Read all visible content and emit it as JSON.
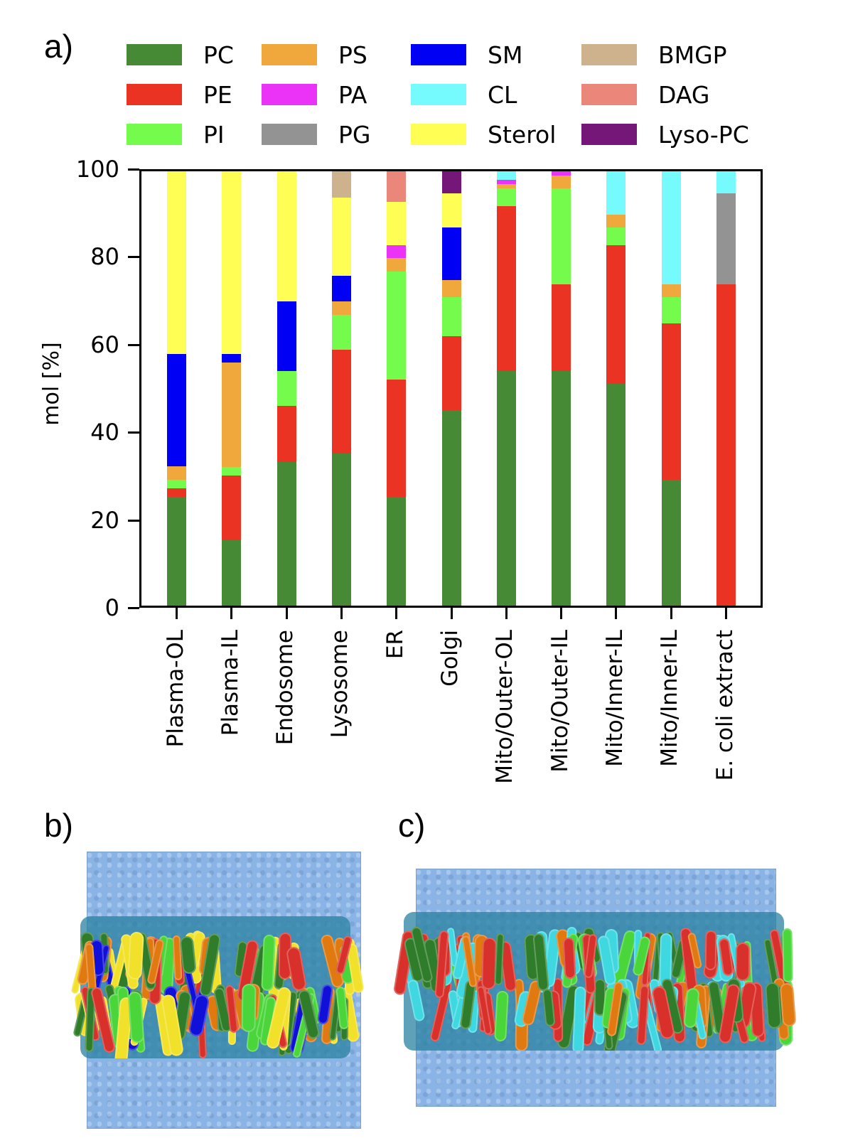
{
  "panels": {
    "a": "a)",
    "b": "b)",
    "c": "c)"
  },
  "legend": [
    {
      "name": "PC",
      "color": "#478a35"
    },
    {
      "name": "PE",
      "color": "#ea3323"
    },
    {
      "name": "PI",
      "color": "#75fb4c"
    },
    {
      "name": "PS",
      "color": "#f0a83c"
    },
    {
      "name": "PA",
      "color": "#ea33f7"
    },
    {
      "name": "PG",
      "color": "#939393"
    },
    {
      "name": "SM",
      "color": "#0000f5"
    },
    {
      "name": "CL",
      "color": "#75fbfd"
    },
    {
      "name": "Sterol",
      "color": "#fffe54"
    },
    {
      "name": "BMGP",
      "color": "#ceb18d"
    },
    {
      "name": "DAG",
      "color": "#ea877a"
    },
    {
      "name": "Lyso-PC",
      "color": "#741779"
    }
  ],
  "axes": {
    "ylabel": "mol [%]",
    "yticks": [
      "0",
      "20",
      "40",
      "60",
      "80",
      "100"
    ]
  },
  "chart_data": {
    "type": "bar",
    "stacked": true,
    "title": "",
    "xlabel": "",
    "ylabel": "mol [%]",
    "ylim": [
      0,
      100
    ],
    "grid": false,
    "legend_position": "top (3 rows x 4 columns)",
    "categories": [
      "Plasma-OL",
      "Plasma-IL",
      "Endosome",
      "Lysosome",
      "ER",
      "Golgi",
      "Mito/Outer-OL",
      "Mito/Outer-IL",
      "Mito/Inner-IL",
      "Mito/Inner-IL",
      "E. coli extract"
    ],
    "series": [
      {
        "name": "PC",
        "values": [
          25,
          15,
          33,
          35,
          25,
          45,
          54,
          54,
          51,
          29,
          0
        ]
      },
      {
        "name": "PE",
        "values": [
          2,
          15,
          13,
          24,
          27,
          17,
          38,
          20,
          32,
          36,
          74
        ]
      },
      {
        "name": "PI",
        "values": [
          2,
          2,
          8,
          8,
          25,
          9,
          4,
          22,
          4,
          6,
          0
        ]
      },
      {
        "name": "PS",
        "values": [
          3,
          24,
          0,
          3,
          3,
          4,
          1,
          3,
          3,
          3,
          0
        ]
      },
      {
        "name": "PA",
        "values": [
          0,
          0,
          0,
          0,
          3,
          0,
          1,
          1,
          0,
          0,
          0
        ]
      },
      {
        "name": "PG",
        "values": [
          0,
          0,
          0,
          0,
          0,
          0,
          0,
          0,
          0,
          0,
          21
        ]
      },
      {
        "name": "SM",
        "values": [
          26,
          2,
          16,
          6,
          0,
          12,
          0,
          0,
          0,
          0,
          0
        ]
      },
      {
        "name": "CL",
        "values": [
          0,
          0,
          0,
          0,
          0,
          0,
          2,
          0,
          10,
          26,
          5
        ]
      },
      {
        "name": "Sterol",
        "values": [
          42,
          42,
          30,
          18,
          10,
          8,
          0,
          0,
          0,
          0,
          0
        ]
      },
      {
        "name": "BMGP",
        "values": [
          0,
          0,
          0,
          6,
          0,
          0,
          0,
          0,
          0,
          0,
          0
        ]
      },
      {
        "name": "DAG",
        "values": [
          0,
          0,
          0,
          0,
          7,
          0,
          0,
          0,
          0,
          0,
          0
        ]
      },
      {
        "name": "Lyso-PC",
        "values": [
          0,
          0,
          0,
          0,
          0,
          5,
          0,
          0,
          0,
          0,
          0
        ]
      }
    ]
  },
  "images": {
    "b": {
      "description": "Membrane simulation snapshot (plasma membrane) with water box"
    },
    "c": {
      "description": "Membrane simulation snapshot (mitochondrial inner membrane) with water box"
    }
  }
}
